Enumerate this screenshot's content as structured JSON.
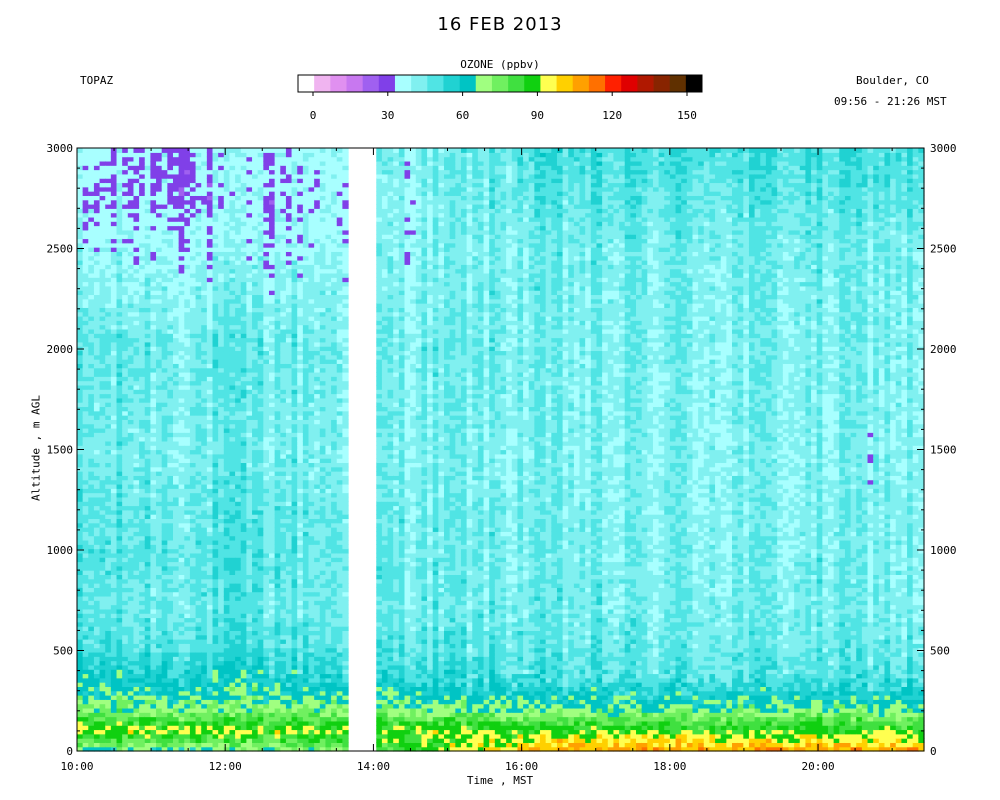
{
  "title": "16 FEB 2013",
  "station": "TOPAZ",
  "location": "Boulder, CO",
  "time_range": "09:56 - 21:26 MST",
  "colorbar": {
    "label": "OZONE (ppbv)",
    "ticks": [
      "0",
      "30",
      "60",
      "90",
      "120",
      "150"
    ],
    "colors": [
      "#ffffff",
      "#f0b4f0",
      "#e090f0",
      "#c878f0",
      "#a060f0",
      "#8040e8",
      "#a8ffff",
      "#80f0f0",
      "#50e4e4",
      "#20d2d2",
      "#00c4c4",
      "#a0ff80",
      "#70f060",
      "#40e040",
      "#10d010",
      "#ffff50",
      "#ffd000",
      "#ffa000",
      "#ff7000",
      "#ff2000",
      "#e00000",
      "#b01800",
      "#882400",
      "#603000",
      "#000000"
    ]
  },
  "chart_data": {
    "type": "heatmap",
    "title": "16 FEB 2013",
    "xlabel": "Time , MST",
    "ylabel": "Altitude , m AGL",
    "x_ticks": [
      "10:00",
      "12:00",
      "14:00",
      "16:00",
      "18:00",
      "20:00"
    ],
    "y_ticks": [
      "0",
      "500",
      "1000",
      "1500",
      "2000",
      "2500",
      "3000"
    ],
    "x_range_hours": [
      10.0,
      21.43
    ],
    "y_range_m": [
      0,
      3000
    ],
    "data_gap_hours": [
      13.62,
      14.02
    ],
    "z_label": "OZONE (ppbv)",
    "z_range": [
      0,
      150
    ],
    "profile_altitudes_m": [
      0,
      50,
      100,
      150,
      200,
      250,
      300,
      350,
      400,
      500,
      700,
      1000,
      1500,
      2000,
      2500,
      2800,
      3000
    ],
    "morning_profile_ppbv": [
      65,
      80,
      95,
      85,
      75,
      70,
      66,
      64,
      60,
      55,
      50,
      52,
      48,
      50,
      42,
      38,
      40
    ],
    "afternoon_profile_ppbv": [
      110,
      100,
      90,
      82,
      72,
      66,
      60,
      55,
      52,
      50,
      48,
      47,
      46,
      47,
      48,
      52,
      55
    ]
  }
}
